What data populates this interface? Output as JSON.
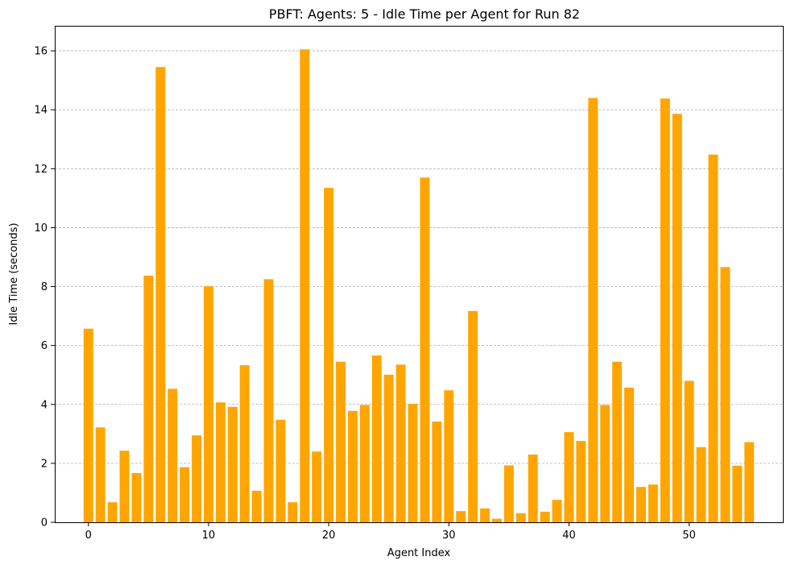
{
  "chart_data": {
    "type": "bar",
    "title": "PBFT: Agents: 5 - Idle Time per Agent for Run 82",
    "xlabel": "Agent Index",
    "ylabel": "Idle Time (seconds)",
    "x": [
      0,
      1,
      2,
      3,
      4,
      5,
      6,
      7,
      8,
      9,
      10,
      11,
      12,
      13,
      14,
      15,
      16,
      17,
      18,
      19,
      20,
      21,
      22,
      23,
      24,
      25,
      26,
      27,
      28,
      29,
      30,
      31,
      32,
      33,
      34,
      35,
      36,
      37,
      38,
      39,
      40,
      41,
      42,
      43,
      44,
      45,
      46,
      47,
      48,
      49,
      50,
      51,
      52,
      53,
      54,
      55
    ],
    "values": [
      6.57,
      3.22,
      0.68,
      2.43,
      1.67,
      8.37,
      15.45,
      4.53,
      1.87,
      2.95,
      8.01,
      4.07,
      3.92,
      5.33,
      1.07,
      8.25,
      3.48,
      0.68,
      16.05,
      2.4,
      11.35,
      5.45,
      3.78,
      3.98,
      5.66,
      5.01,
      5.35,
      4.02,
      11.7,
      3.42,
      4.48,
      0.38,
      7.17,
      0.47,
      0.12,
      1.93,
      0.31,
      2.3,
      0.36,
      0.76,
      3.06,
      2.76,
      14.4,
      3.98,
      5.45,
      4.57,
      1.2,
      1.28,
      14.38,
      13.86,
      4.8,
      2.55,
      12.48,
      8.66,
      1.92,
      2.72
    ],
    "xlim": [
      -2.8,
      57.8
    ],
    "ylim": [
      0,
      16.85
    ],
    "xticks": [
      0,
      10,
      20,
      30,
      40,
      50
    ],
    "yticks": [
      0,
      2,
      4,
      6,
      8,
      10,
      12,
      14,
      16
    ],
    "bar_color": "#FFA500",
    "grid": "y-dashed"
  }
}
